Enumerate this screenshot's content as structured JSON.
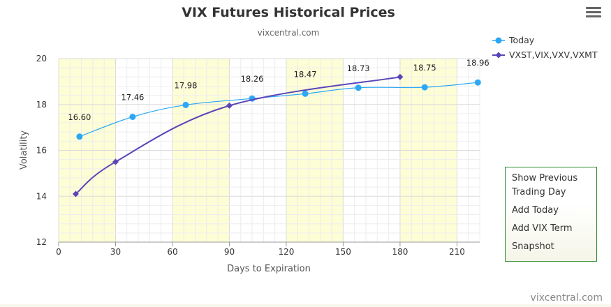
{
  "chart_data": {
    "type": "line",
    "title": "VIX Futures Historical Prices",
    "subtitle": "vixcentral.com",
    "xlabel": "Days to Expiration",
    "ylabel": "Volatility",
    "xlim": [
      0,
      222
    ],
    "ylim": [
      12,
      20
    ],
    "x_ticks": [
      0,
      30,
      60,
      90,
      120,
      150,
      180,
      210
    ],
    "y_ticks": [
      12,
      14,
      16,
      18,
      20
    ],
    "grid": true,
    "shaded_bands": [
      [
        0,
        30
      ],
      [
        60,
        90
      ],
      [
        120,
        150
      ],
      [
        180,
        210
      ]
    ],
    "legend_position": "top-right",
    "series": [
      {
        "name": "Today",
        "color": "#2ba8f5",
        "marker": "circle",
        "points": [
          {
            "x": 11,
            "y": 16.6,
            "label": "16.60"
          },
          {
            "x": 39,
            "y": 17.46,
            "label": "17.46"
          },
          {
            "x": 67,
            "y": 17.98,
            "label": "17.98"
          },
          {
            "x": 102,
            "y": 18.26,
            "label": "18.26"
          },
          {
            "x": 130,
            "y": 18.47,
            "label": "18.47"
          },
          {
            "x": 158,
            "y": 18.73,
            "label": "18.73"
          },
          {
            "x": 193,
            "y": 18.75,
            "label": "18.75"
          },
          {
            "x": 221,
            "y": 18.96,
            "label": "18.96"
          }
        ]
      },
      {
        "name": "VXST,VIX,VXV,VXMT",
        "color": "#5a45b8",
        "marker": "diamond",
        "points": [
          {
            "x": 9,
            "y": 14.1
          },
          {
            "x": 30,
            "y": 15.5
          },
          {
            "x": 90,
            "y": 17.95
          },
          {
            "x": 180,
            "y": 19.2
          }
        ]
      }
    ]
  },
  "menu": {
    "icon": "hamburger-menu-icon"
  },
  "panel": {
    "options": [
      "Show Previous Trading Day",
      "Add Today",
      "Add VIX Term",
      "Snapshot"
    ]
  },
  "credits": "vixcentral.com"
}
